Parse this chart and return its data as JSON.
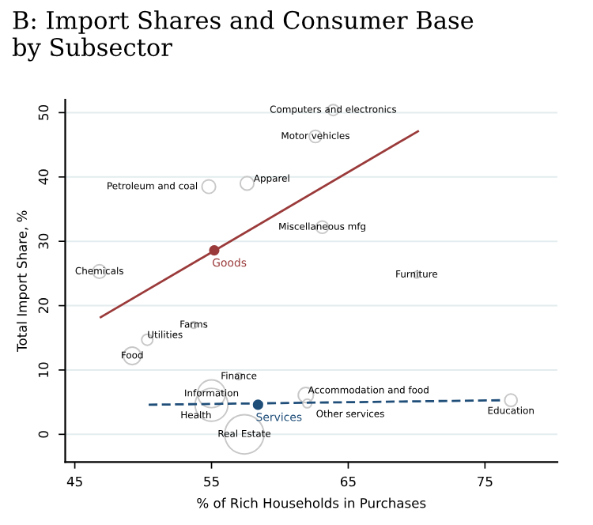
{
  "chart_data": {
    "type": "bubble",
    "title": "B: Import Shares and Consumer Base\nby Subsector",
    "xlabel": "% of Rich Households in Purchases",
    "ylabel": "Total Import Share, %",
    "xlim": [
      44.3,
      80.3
    ],
    "ylim": [
      -4.3,
      52
    ],
    "xticks": [
      45,
      55,
      65,
      75
    ],
    "yticks": [
      0,
      10,
      20,
      30,
      40,
      50
    ],
    "grid": "y",
    "series": [
      {
        "color": "#c8c8c8",
        "x": [
          63.9,
          62.6,
          54.8,
          57.6,
          63.1,
          46.8,
          70,
          53.7,
          50.3,
          49.2,
          57,
          55,
          55,
          57.4,
          61.9,
          62,
          76.9
        ],
        "values": [
          50.4,
          46.3,
          38.5,
          39,
          32.2,
          25.3,
          24.8,
          17,
          14.7,
          12.2,
          9,
          6.3,
          4.6,
          0,
          6.1,
          4.8,
          5.3
        ],
        "sizes": [
          0.08,
          0.1,
          0.12,
          0.12,
          0.1,
          0.12,
          0.03,
          0.03,
          0.08,
          0.2,
          0.03,
          0.5,
          0.7,
          1,
          0.15,
          0.05,
          0.1
        ]
      },
      {
        "type": "line",
        "color": "#9b3a3a",
        "x": [
          46.9,
          70.1
        ],
        "values": [
          18.2,
          47.1
        ],
        "line_style": "solid"
      },
      {
        "type": "line",
        "color": "#1f4e79",
        "x": [
          50.4,
          76.4
        ],
        "values": [
          4.6,
          5.3
        ],
        "line_style": "dashed"
      },
      {
        "type": "scatter",
        "name": "Goods",
        "color": "#9b3a3a",
        "x": [
          55.2
        ],
        "values": [
          28.6
        ],
        "marker": "circle"
      },
      {
        "type": "scatter",
        "name": "Services",
        "color": "#1f4e79",
        "x": [
          58.4
        ],
        "values": [
          4.6
        ],
        "marker": "circle"
      }
    ],
    "annotations": [
      {
        "text": "Computers and electronics",
        "x": 63.9,
        "y": 50.4
      },
      {
        "text": "Motor vehicles",
        "x": 62.6,
        "y": 46.3
      },
      {
        "text": "Petroleum and coal",
        "x": 54.8,
        "y": 38.5
      },
      {
        "text": "Apparel",
        "x": 57.6,
        "y": 39
      },
      {
        "text": "Miscellaneous mfg",
        "x": 63.1,
        "y": 32.2
      },
      {
        "text": "Chemicals",
        "x": 46.8,
        "y": 25.3
      },
      {
        "text": "Furniture",
        "x": 70,
        "y": 24.8
      },
      {
        "text": "Farms",
        "x": 53.7,
        "y": 17
      },
      {
        "text": "Utilities",
        "x": 50.3,
        "y": 14.7
      },
      {
        "text": "Food",
        "x": 49.2,
        "y": 12.2
      },
      {
        "text": "Finance",
        "x": 57,
        "y": 9
      },
      {
        "text": "Information",
        "x": 55,
        "y": 6.3
      },
      {
        "text": "Health",
        "x": 55,
        "y": 4.6
      },
      {
        "text": "Real Estate",
        "x": 57.4,
        "y": 0
      },
      {
        "text": "Accommodation and food",
        "x": 61.9,
        "y": 6.1
      },
      {
        "text": "Other services",
        "x": 62,
        "y": 4.8
      },
      {
        "text": "Education",
        "x": 76.9,
        "y": 5.3
      }
    ]
  }
}
